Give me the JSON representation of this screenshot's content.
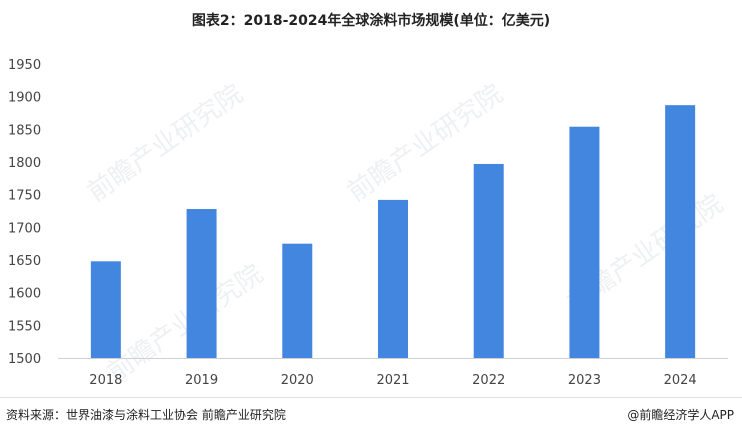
{
  "chart_data": {
    "type": "bar",
    "title": "图表2：2018-2024年全球涂料市场规模(单位：亿美元)",
    "categories": [
      "2018",
      "2019",
      "2020",
      "2021",
      "2022",
      "2023",
      "2024"
    ],
    "values": [
      1648,
      1728,
      1675,
      1742,
      1797,
      1854,
      1887
    ],
    "ylim": [
      1500,
      1950
    ],
    "yticks": [
      1500,
      1550,
      1600,
      1650,
      1700,
      1750,
      1800,
      1850,
      1900,
      1950
    ],
    "xlabel": "",
    "ylabel": "",
    "grid": false,
    "bar_color": "#4286E0"
  },
  "footer": {
    "source": "资料来源：世界油漆与涂料工业协会 前瞻产业研究院",
    "brand": "@前瞻经济学人APP"
  },
  "watermark": "前瞻产业研究院"
}
